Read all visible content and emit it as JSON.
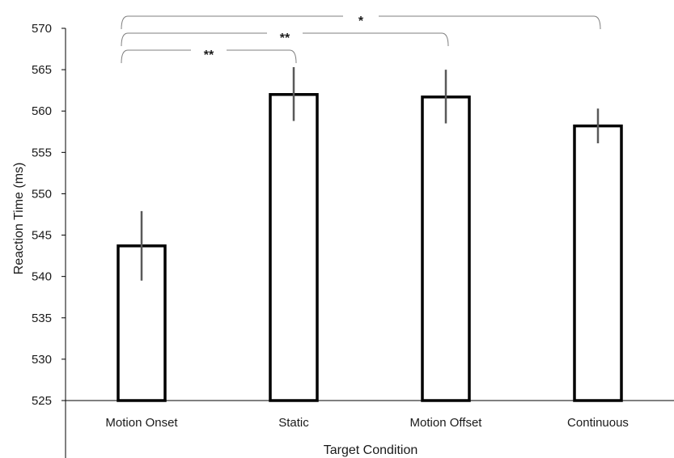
{
  "chart_data": {
    "type": "bar",
    "title": "",
    "xlabel": "Target Condition",
    "ylabel": "Reaction Time (ms)",
    "categories": [
      "Motion Onset",
      "Static",
      "Motion Offset",
      "Continuous"
    ],
    "values": [
      543.7,
      562.0,
      561.7,
      558.2
    ],
    "error_low": [
      539.5,
      558.8,
      558.5,
      556.1
    ],
    "error_high": [
      547.9,
      565.3,
      565.0,
      560.3
    ],
    "ylim": [
      525,
      570
    ],
    "yticks": [
      525,
      530,
      535,
      540,
      545,
      550,
      555,
      560,
      565,
      570
    ],
    "grid": false,
    "legend": "none",
    "significance": [
      {
        "from": "Motion Onset",
        "to": "Static",
        "label": "**"
      },
      {
        "from": "Motion Onset",
        "to": "Motion Offset",
        "label": "**"
      },
      {
        "from": "Motion Onset",
        "to": "Continuous",
        "label": "*"
      }
    ],
    "colors": {
      "bar_fill": "#ffffff",
      "bar_stroke": "#000000",
      "error_bar": "#595959",
      "axis": "#000000",
      "bracket": "#7f7f7f"
    }
  }
}
